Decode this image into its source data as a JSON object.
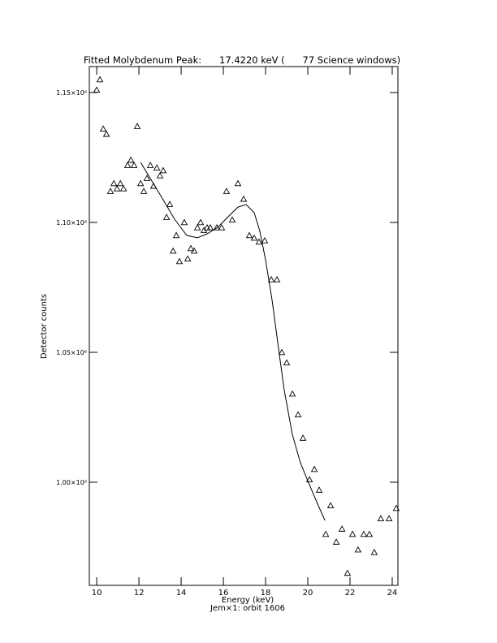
{
  "chart_data": {
    "type": "scatter",
    "title": "Fitted Molybdenum Peak:      17.4220 keV (      77 Science windows)",
    "x_label": "Energy (keV)",
    "y_label": "Detector counts",
    "subtitle": "Jem×1: orbit 1606",
    "xlim": [
      9.65,
      24.27
    ],
    "ylim": [
      960300,
      1160000
    ],
    "xticks": [
      10,
      12,
      14,
      16,
      18,
      20,
      22,
      24
    ],
    "yticks": [
      {
        "value": 1000000,
        "label": "1.00×10⁶"
      },
      {
        "value": 1050000,
        "label": "1.05×10⁶"
      },
      {
        "value": 1100000,
        "label": "1.10×10⁶"
      },
      {
        "value": 1150000,
        "label": "1.15×10⁶"
      }
    ],
    "series": [
      {
        "marker": "triangle",
        "color": "#000000",
        "x": [
          10.0,
          10.15,
          10.31,
          10.46,
          10.65,
          10.81,
          10.96,
          11.12,
          11.27,
          11.46,
          11.62,
          11.77,
          11.92,
          12.08,
          12.23,
          12.38,
          12.54,
          12.69,
          12.85,
          13.0,
          13.15,
          13.31,
          13.46,
          13.62,
          13.77,
          13.92,
          14.15,
          14.31,
          14.46,
          14.62,
          14.77,
          14.92,
          15.08,
          15.23,
          15.38,
          15.69,
          15.92,
          16.15,
          16.42,
          16.69,
          16.96,
          17.23,
          17.46,
          17.69,
          17.96,
          18.27,
          18.54,
          18.77,
          19.0,
          19.27,
          19.54,
          19.77,
          20.08,
          20.31,
          20.54,
          20.85,
          21.08,
          21.35,
          21.62,
          21.88,
          22.12,
          22.38,
          22.65,
          22.92,
          23.15,
          23.46,
          23.85,
          24.19
        ],
        "values": [
          1151000,
          1155000,
          1136000,
          1134000,
          1112000,
          1115000,
          1113000,
          1115000,
          1113000,
          1122000,
          1124000,
          1122000,
          1137000,
          1115000,
          1112000,
          1117000,
          1122000,
          1114000,
          1121000,
          1118000,
          1120000,
          1102000,
          1107000,
          1089000,
          1095000,
          1085000,
          1100000,
          1086000,
          1090000,
          1089000,
          1098000,
          1100000,
          1097000,
          1098000,
          1098000,
          1098000,
          1098000,
          1112000,
          1101000,
          1115000,
          1109000,
          1095000,
          1094000,
          1092500,
          1093000,
          1078000,
          1078000,
          1050000,
          1046000,
          1034000,
          1026000,
          1017000,
          1001000,
          1005000,
          997000,
          980000,
          991000,
          977000,
          982000,
          965000,
          980000,
          974000,
          980000,
          980000,
          973000,
          986000,
          986000,
          990000
        ]
      },
      {
        "line": true,
        "color": "#000000",
        "x": [
          12.08,
          12.54,
          13.12,
          13.69,
          14.27,
          14.77,
          15.23,
          15.73,
          16.19,
          16.69,
          17.08,
          17.46,
          17.73,
          18.0,
          18.31,
          18.62,
          18.88,
          19.27,
          19.65,
          20.04,
          20.42,
          20.81
        ],
        "values": [
          1123100,
          1116900,
          1109100,
          1101250,
          1095000,
          1094100,
          1095600,
          1098100,
          1101900,
          1105900,
          1106900,
          1103750,
          1096600,
          1085600,
          1070000,
          1051250,
          1035600,
          1018400,
          1007500,
          999700,
          992500,
          985300
        ]
      }
    ]
  }
}
